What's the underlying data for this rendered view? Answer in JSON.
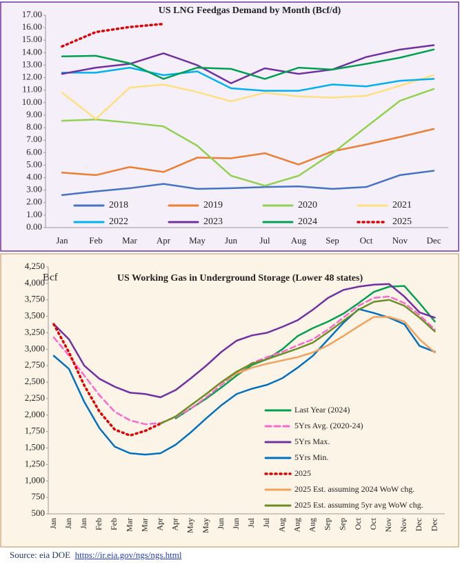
{
  "chart_data": [
    {
      "type": "line",
      "title": "US LNG Feedgas Demand by Month (Bcf/d)",
      "categories": [
        "Jan",
        "Feb",
        "Mar",
        "Apr",
        "May",
        "Jun",
        "Jul",
        "Aug",
        "Sep",
        "Oct",
        "Nov",
        "Dec"
      ],
      "ylim": [
        0,
        17
      ],
      "yticks": [
        {
          "value": 0,
          "label": "0.00"
        },
        {
          "value": 1,
          "label": "1.00"
        },
        {
          "value": 2,
          "label": "2.00"
        },
        {
          "value": 3,
          "label": "3.00"
        },
        {
          "value": 4,
          "label": "4.00"
        },
        {
          "value": 5,
          "label": "5.00"
        },
        {
          "value": 6,
          "label": "6.00"
        },
        {
          "value": 7,
          "label": "7.00"
        },
        {
          "value": 8,
          "label": "8.00"
        },
        {
          "value": 9,
          "label": "9.00"
        },
        {
          "value": 10,
          "label": "10.00"
        },
        {
          "value": 11,
          "label": "11.00"
        },
        {
          "value": 12,
          "label": "12.00"
        },
        {
          "value": 13,
          "label": "13.00"
        },
        {
          "value": 14,
          "label": "14.00"
        },
        {
          "value": 15,
          "label": "15.00"
        },
        {
          "value": 16,
          "label": "16.00"
        },
        {
          "value": 17,
          "label": "17.00"
        }
      ],
      "grid": false,
      "legend": "bottom",
      "series": [
        {
          "name": "2018",
          "color": "#4472c4",
          "values": [
            2.6,
            2.9,
            3.15,
            3.5,
            3.1,
            3.15,
            3.25,
            3.3,
            3.1,
            3.25,
            4.2,
            4.55
          ]
        },
        {
          "name": "2019",
          "color": "#ed7d31",
          "values": [
            4.4,
            4.2,
            4.85,
            4.45,
            5.6,
            5.55,
            5.95,
            5.05,
            6.1,
            6.65,
            7.25,
            7.9
          ]
        },
        {
          "name": "2020",
          "color": "#92d050",
          "values": [
            8.55,
            8.65,
            8.4,
            8.1,
            6.55,
            4.15,
            3.35,
            4.15,
            5.95,
            8.05,
            10.15,
            11.1
          ]
        },
        {
          "name": "2021",
          "color": "#ffe080",
          "values": [
            10.8,
            8.7,
            11.2,
            11.45,
            10.85,
            10.1,
            10.8,
            10.5,
            10.4,
            10.55,
            11.35,
            12.2
          ]
        },
        {
          "name": "2022",
          "color": "#00b0f0",
          "values": [
            12.4,
            12.4,
            12.8,
            12.2,
            12.5,
            11.15,
            10.95,
            10.95,
            11.45,
            11.3,
            11.75,
            11.9
          ]
        },
        {
          "name": "2023",
          "color": "#7030a0",
          "values": [
            12.3,
            12.8,
            13.1,
            13.95,
            13.0,
            11.55,
            12.75,
            12.3,
            12.65,
            13.65,
            14.25,
            14.6
          ]
        },
        {
          "name": "2024",
          "color": "#00a050",
          "values": [
            13.7,
            13.75,
            13.15,
            11.9,
            12.8,
            12.7,
            11.9,
            12.8,
            12.65,
            13.1,
            13.6,
            14.25
          ]
        },
        {
          "name": "2025",
          "color": "#e00000",
          "line_style": "dotted",
          "values": [
            14.5,
            15.65,
            16.05,
            16.3,
            null,
            null,
            null,
            null,
            null,
            null,
            null,
            null
          ]
        }
      ]
    },
    {
      "type": "line",
      "title": "US Working Gas in Underground Storage (Lower 48 states)",
      "y_label": "Bcf",
      "categories": [
        "Jan",
        "Jan",
        "Jan",
        "Feb",
        "Feb",
        "Mar",
        "Mar",
        "Apr",
        "Apr",
        "May",
        "May",
        "Jun",
        "Jun",
        "Jul",
        "Jul",
        "Aug",
        "Aug",
        "Aug",
        "Sep",
        "Sep",
        "Oct",
        "Oct",
        "Nov",
        "Nov",
        "Dec",
        "Dec"
      ],
      "ylim": [
        500,
        4250
      ],
      "yticks": [
        500,
        750,
        {
          "value": 1000,
          "label": "1,000"
        },
        {
          "value": 1250,
          "label": "1,250"
        },
        {
          "value": 1500,
          "label": "1,500"
        },
        {
          "value": 1750,
          "label": "1,750"
        },
        {
          "value": 2000,
          "label": "2,000"
        },
        {
          "value": 2250,
          "label": "2,250"
        },
        {
          "value": 2500,
          "label": "2,500"
        },
        {
          "value": 2750,
          "label": "2,750"
        },
        {
          "value": 3000,
          "label": "3,000"
        },
        {
          "value": 3250,
          "label": "3,250"
        },
        {
          "value": 3500,
          "label": "3,500"
        },
        {
          "value": 3750,
          "label": "3,750"
        },
        {
          "value": 4000,
          "label": "4,000"
        },
        {
          "value": 4250,
          "label": "4,250"
        }
      ],
      "grid": false,
      "legend": "lower right",
      "series": [
        {
          "name": "Last Year (2024)",
          "color": "#00a050",
          "values": [
            null,
            null,
            null,
            null,
            null,
            null,
            null,
            null,
            1950,
            2100,
            2250,
            2420,
            2600,
            2760,
            2850,
            3000,
            3200,
            3320,
            3420,
            3540,
            3700,
            3870,
            3950,
            3960,
            3700,
            3420
          ]
        },
        {
          "name": "5Yrs Avg. (2020-24)",
          "color": "#ff66cc",
          "line_style": "dashed",
          "values": [
            3180,
            2900,
            2600,
            2300,
            2050,
            1920,
            1860,
            1880,
            1970,
            2100,
            2270,
            2460,
            2640,
            2790,
            2880,
            2960,
            3060,
            3150,
            3300,
            3480,
            3660,
            3780,
            3800,
            3700,
            3520,
            3300
          ]
        },
        {
          "name": "5Yrs Max.",
          "color": "#7030a0",
          "values": [
            3380,
            3150,
            2750,
            2550,
            2430,
            2340,
            2320,
            2270,
            2380,
            2560,
            2750,
            2960,
            3130,
            3210,
            3250,
            3340,
            3440,
            3600,
            3780,
            3900,
            3950,
            3980,
            3990,
            3800,
            3560,
            3480
          ]
        },
        {
          "name": "5Yrs Min.",
          "color": "#0070c0",
          "values": [
            2900,
            2700,
            2200,
            1800,
            1520,
            1420,
            1400,
            1420,
            1550,
            1740,
            1950,
            2150,
            2320,
            2400,
            2460,
            2560,
            2720,
            2900,
            3150,
            3400,
            3610,
            3550,
            3480,
            3380,
            3050,
            2960
          ]
        },
        {
          "name": "2025",
          "color": "#e00000",
          "line_style": "dotted",
          "values": [
            3380,
            2950,
            2450,
            2050,
            1780,
            1690,
            1760,
            1870,
            null,
            null,
            null,
            null,
            null,
            null,
            null,
            null,
            null,
            null,
            null,
            null,
            null,
            null,
            null,
            null,
            null,
            null
          ]
        },
        {
          "name": "2025 Est. assuming 2024 WoW chg.",
          "color": "#f4a05a",
          "values": [
            null,
            null,
            null,
            null,
            null,
            null,
            null,
            1870,
            1980,
            2150,
            2320,
            2500,
            2630,
            2720,
            2780,
            2830,
            2880,
            2950,
            3060,
            3200,
            3350,
            3490,
            3490,
            3420,
            3150,
            2950
          ]
        },
        {
          "name": "2025 Est. assuming 5yr avg WoW chg.",
          "color": "#6b8e23",
          "values": [
            null,
            null,
            null,
            null,
            null,
            null,
            null,
            1870,
            1980,
            2150,
            2320,
            2500,
            2660,
            2780,
            2850,
            2930,
            3010,
            3100,
            3260,
            3430,
            3600,
            3720,
            3750,
            3660,
            3480,
            3270
          ]
        }
      ]
    }
  ],
  "source": "Source: eia DOE",
  "source_url": "https://ir.eia.gov/ngs/ngs.html"
}
